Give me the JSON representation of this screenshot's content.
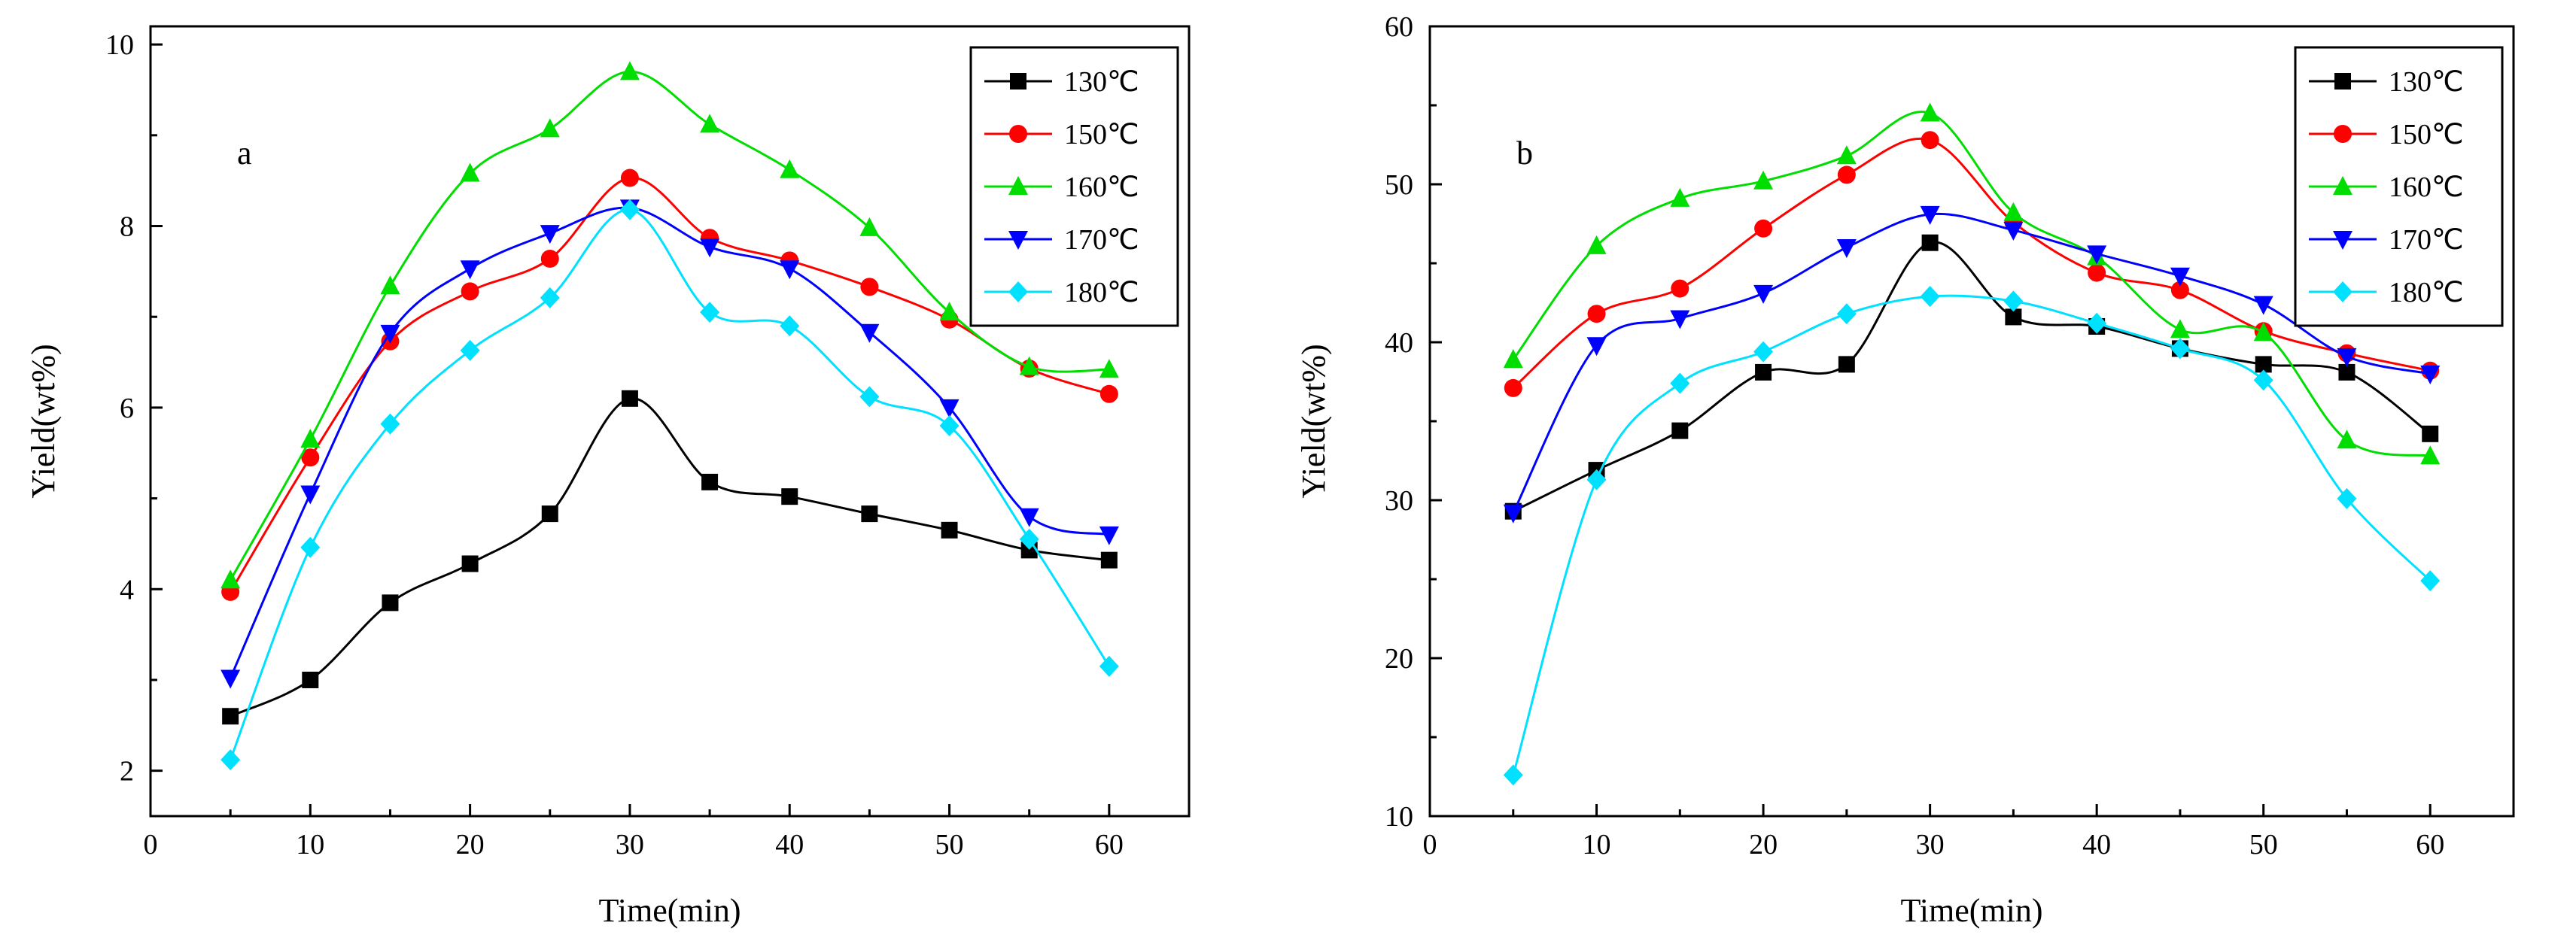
{
  "chart_data": [
    {
      "type": "line",
      "panel_label": "a",
      "xlabel": "Time(min)",
      "ylabel": "Yield(wt%)",
      "xlim": [
        0,
        65
      ],
      "ylim": [
        1.5,
        10.2
      ],
      "xticks": [
        0,
        10,
        20,
        30,
        40,
        50,
        60
      ],
      "yticks": [
        2,
        4,
        6,
        8,
        10
      ],
      "x": [
        5,
        10,
        15,
        20,
        25,
        30,
        35,
        40,
        45,
        50,
        55,
        60
      ],
      "legend_position": "top-right",
      "series": [
        {
          "name": "130℃",
          "color": "#000000",
          "marker": "square",
          "values": [
            2.6,
            3.0,
            3.85,
            4.28,
            4.83,
            6.1,
            5.18,
            5.02,
            4.83,
            4.65,
            4.43,
            4.32
          ]
        },
        {
          "name": "150℃",
          "color": "#ff0000",
          "marker": "circle",
          "values": [
            3.97,
            5.45,
            6.73,
            7.28,
            7.64,
            8.53,
            7.87,
            7.62,
            7.33,
            6.97,
            6.43,
            6.15
          ]
        },
        {
          "name": "160℃",
          "color": "#00dd00",
          "marker": "triangle-up",
          "values": [
            4.1,
            5.65,
            7.34,
            8.58,
            9.07,
            9.7,
            9.12,
            8.62,
            7.98,
            7.05,
            6.45,
            6.42
          ]
        },
        {
          "name": "170℃",
          "color": "#0000ff",
          "marker": "triangle-down",
          "values": [
            3.02,
            5.05,
            6.82,
            7.53,
            7.92,
            8.2,
            7.77,
            7.53,
            6.83,
            6.0,
            4.8,
            4.6
          ]
        },
        {
          "name": "180℃",
          "color": "#00e0ff",
          "marker": "diamond",
          "values": [
            2.12,
            4.46,
            5.82,
            6.63,
            7.21,
            8.18,
            7.05,
            6.9,
            6.12,
            5.8,
            4.55,
            3.15
          ]
        }
      ]
    },
    {
      "type": "line",
      "panel_label": "b",
      "xlabel": "Time(min)",
      "ylabel": "Yield(wt%)",
      "xlim": [
        0,
        65
      ],
      "ylim": [
        10,
        60
      ],
      "xticks": [
        0,
        10,
        20,
        30,
        40,
        50,
        60
      ],
      "yticks": [
        10,
        20,
        30,
        40,
        50,
        60
      ],
      "x": [
        5,
        10,
        15,
        20,
        25,
        30,
        35,
        40,
        45,
        50,
        55,
        60
      ],
      "legend_position": "top-right",
      "series": [
        {
          "name": "130℃",
          "color": "#000000",
          "marker": "square",
          "values": [
            29.3,
            31.9,
            34.4,
            38.1,
            38.6,
            46.3,
            41.6,
            41.0,
            39.6,
            38.6,
            38.1,
            34.2
          ]
        },
        {
          "name": "150℃",
          "color": "#ff0000",
          "marker": "circle",
          "values": [
            37.1,
            41.8,
            43.4,
            47.2,
            50.6,
            52.8,
            47.6,
            44.4,
            43.3,
            40.7,
            39.3,
            38.2
          ]
        },
        {
          "name": "160℃",
          "color": "#00dd00",
          "marker": "triangle-up",
          "values": [
            38.9,
            46.1,
            49.1,
            50.2,
            51.8,
            54.5,
            48.2,
            45.4,
            40.8,
            40.6,
            33.8,
            32.8
          ]
        },
        {
          "name": "170℃",
          "color": "#0000ff",
          "marker": "triangle-down",
          "values": [
            29.2,
            39.8,
            41.5,
            43.1,
            46.0,
            48.1,
            47.1,
            45.6,
            44.2,
            42.4,
            39.1,
            38.0
          ]
        },
        {
          "name": "180℃",
          "color": "#00e0ff",
          "marker": "diamond",
          "values": [
            12.6,
            31.3,
            37.4,
            39.4,
            41.8,
            42.9,
            42.6,
            41.2,
            39.6,
            37.6,
            30.1,
            24.9
          ]
        }
      ]
    }
  ]
}
